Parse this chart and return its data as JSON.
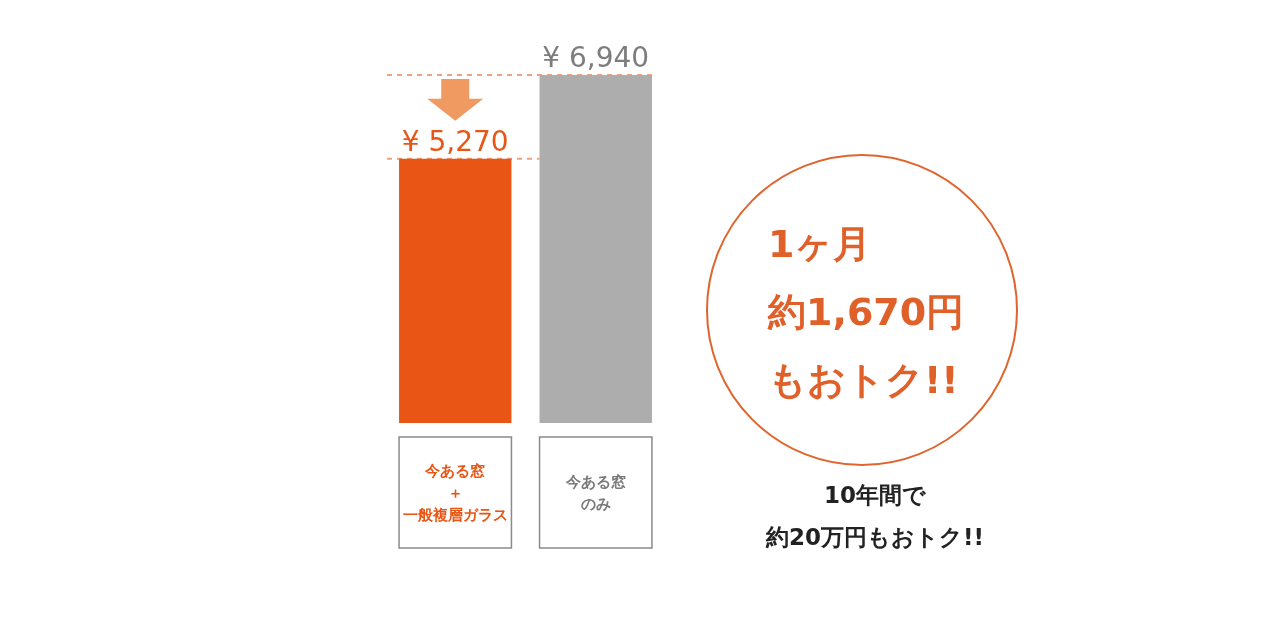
{
  "chart_data": {
    "type": "bar",
    "categories": [
      "今ある窓＋一般複層ガラス",
      "今ある窓のみ"
    ],
    "values": [
      5270,
      6940
    ],
    "colors": [
      "#e85514",
      "#adadad"
    ],
    "value_labels": [
      "¥ 5,270",
      "¥ 6,940"
    ],
    "annotations": [
      "1ヶ月約1,670円もおトク!!",
      "10年間で約20万円もおトク!!"
    ]
  }
}
